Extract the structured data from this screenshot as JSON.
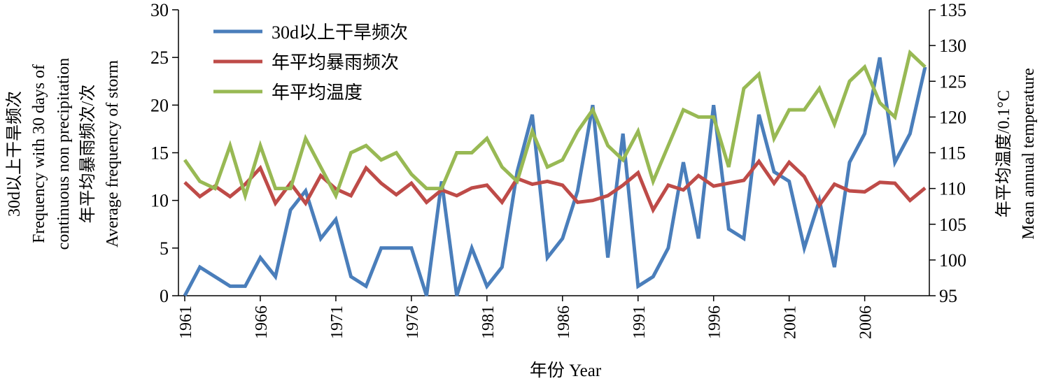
{
  "chart_data": {
    "type": "line",
    "x": [
      1961,
      1962,
      1963,
      1964,
      1965,
      1966,
      1967,
      1968,
      1969,
      1970,
      1971,
      1972,
      1973,
      1974,
      1975,
      1976,
      1977,
      1978,
      1979,
      1980,
      1981,
      1982,
      1983,
      1984,
      1985,
      1986,
      1987,
      1988,
      1989,
      1990,
      1991,
      1992,
      1993,
      1994,
      1995,
      1996,
      1997,
      1998,
      1999,
      2000,
      2001,
      2002,
      2003,
      2004,
      2005,
      2006,
      2007,
      2008,
      2009,
      2010
    ],
    "x_ticks": [
      "1961",
      "1966",
      "1971",
      "1976",
      "1981",
      "1986",
      "1991",
      "1996",
      "2001",
      "2006"
    ],
    "xlabel": "年份 Year",
    "y_left": {
      "ticks": [
        "0",
        "5",
        "10",
        "15",
        "20",
        "25",
        "30"
      ],
      "range": [
        0,
        30
      ],
      "labels": [
        "30d以上干旱频次",
        "Frequency with 30 days of",
        "continuous non precipitation",
        "年平均暴雨频次/次",
        "Average frequency of storm"
      ]
    },
    "y_right": {
      "ticks": [
        "95",
        "100",
        "105",
        "110",
        "115",
        "120",
        "125",
        "130",
        "135"
      ],
      "range": [
        95,
        135
      ],
      "labels": [
        "年平均温度/0.1°C",
        "Mean annual temperature"
      ]
    },
    "series": [
      {
        "name": "30d以上干旱频次",
        "axis": "left",
        "color": "#4a7ebb",
        "values": [
          0,
          3,
          2,
          1,
          1,
          4,
          2,
          9,
          11,
          6,
          8,
          2,
          1,
          5,
          5,
          5,
          0,
          12,
          0,
          5,
          1,
          3,
          13,
          19,
          4,
          6,
          11,
          20,
          4,
          17,
          1,
          2,
          5,
          14,
          6,
          20,
          7,
          6,
          19,
          13,
          12,
          5,
          10,
          3,
          14,
          17,
          25,
          14,
          17,
          24
        ]
      },
      {
        "name": "年平均暴雨频次",
        "axis": "left",
        "color": "#be4b48",
        "values": [
          11.9,
          10.4,
          11.5,
          10.4,
          11.7,
          13.4,
          9.7,
          11.8,
          9.7,
          12.6,
          11.2,
          10.5,
          13.4,
          11.8,
          10.6,
          11.8,
          9.8,
          11.1,
          10.5,
          11.3,
          11.6,
          9.8,
          12.3,
          11.7,
          12.0,
          11.6,
          9.8,
          10.0,
          10.5,
          11.6,
          12.9,
          9.0,
          11.6,
          11.1,
          12.6,
          11.5,
          11.8,
          12.1,
          14.1,
          11.8,
          14.0,
          12.5,
          9.5,
          11.7,
          11.0,
          10.9,
          11.9,
          11.8,
          10.0,
          11.3
        ]
      },
      {
        "name": "年平均温度",
        "axis": "right",
        "color": "#98b954",
        "values": [
          114,
          111,
          110,
          116,
          109,
          116,
          110,
          110,
          117,
          113,
          109,
          115,
          116,
          114,
          115,
          112,
          110,
          110,
          115,
          115,
          117,
          113,
          111,
          118,
          113,
          114,
          118,
          121,
          116,
          114,
          118,
          111,
          116,
          121,
          120,
          120,
          113,
          124,
          126,
          117,
          121,
          121,
          124,
          119,
          125,
          127,
          122,
          120,
          129,
          127
        ]
      }
    ],
    "legend": "top-left"
  }
}
